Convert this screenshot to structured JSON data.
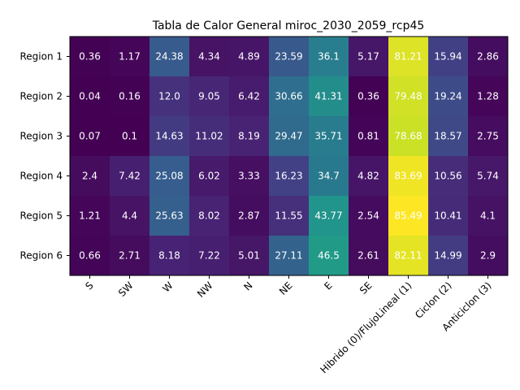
{
  "chart_data": {
    "type": "heatmap",
    "title": "Tabla de Calor General miroc_2030_2059_rcp45",
    "xlabel": "",
    "ylabel": "",
    "colormap": "viridis",
    "value_range": [
      0,
      85.49
    ],
    "x_categories": [
      "S",
      "SW",
      "W",
      "NW",
      "N",
      "NE",
      "E",
      "SE",
      "Hibrido (0)/FlujoLineal (1)",
      "Ciclon (2)",
      "Anticiclon (3)"
    ],
    "y_categories": [
      "Region 1",
      "Region 2",
      "Region 3",
      "Region 4",
      "Region 5",
      "Region 6"
    ],
    "values": [
      [
        0.36,
        1.17,
        24.38,
        4.34,
        4.89,
        23.59,
        36.1,
        5.17,
        81.21,
        15.94,
        2.86
      ],
      [
        0.04,
        0.16,
        12.0,
        9.05,
        6.42,
        30.66,
        41.31,
        0.36,
        79.48,
        19.24,
        1.28
      ],
      [
        0.07,
        0.1,
        14.63,
        11.02,
        8.19,
        29.47,
        35.71,
        0.81,
        78.68,
        18.57,
        2.75
      ],
      [
        2.4,
        7.42,
        25.08,
        6.02,
        3.33,
        16.23,
        34.7,
        4.82,
        83.69,
        10.56,
        5.74
      ],
      [
        1.21,
        4.4,
        25.63,
        8.02,
        2.87,
        11.55,
        43.77,
        2.54,
        85.49,
        10.41,
        4.1
      ],
      [
        0.66,
        2.71,
        8.18,
        7.22,
        5.01,
        27.11,
        46.5,
        2.61,
        82.11,
        14.99,
        2.9
      ]
    ],
    "cell_labels": [
      [
        "0.36",
        "1.17",
        "24.38",
        "4.34",
        "4.89",
        "23.59",
        "36.1",
        "5.17",
        "81.21",
        "15.94",
        "2.86"
      ],
      [
        "0.04",
        "0.16",
        "12.0",
        "9.05",
        "6.42",
        "30.66",
        "41.31",
        "0.36",
        "79.48",
        "19.24",
        "1.28"
      ],
      [
        "0.07",
        "0.1",
        "14.63",
        "11.02",
        "8.19",
        "29.47",
        "35.71",
        "0.81",
        "78.68",
        "18.57",
        "2.75"
      ],
      [
        "2.4",
        "7.42",
        "25.08",
        "6.02",
        "3.33",
        "16.23",
        "34.7",
        "4.82",
        "83.69",
        "10.56",
        "5.74"
      ],
      [
        "1.21",
        "4.4",
        "25.63",
        "8.02",
        "2.87",
        "11.55",
        "43.77",
        "2.54",
        "85.49",
        "10.41",
        "4.1"
      ],
      [
        "0.66",
        "2.71",
        "8.18",
        "7.22",
        "5.01",
        "27.11",
        "46.5",
        "2.61",
        "82.11",
        "14.99",
        "2.9"
      ]
    ],
    "legend": "none",
    "grid": false
  }
}
